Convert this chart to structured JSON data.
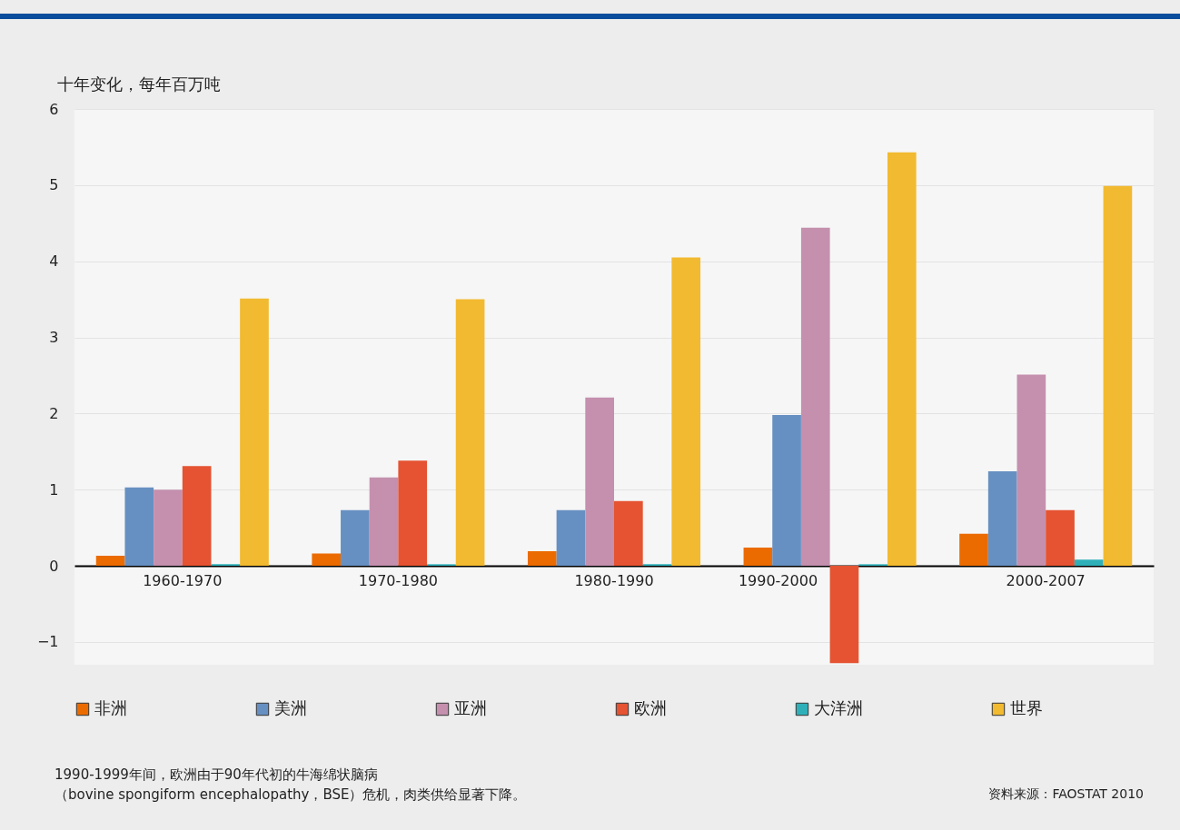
{
  "chart_data": {
    "type": "bar",
    "ylabel": "十年变化，每年百万吨",
    "categories": [
      "1960-1970",
      "1970-1980",
      "1980-1990",
      "1990-2000",
      "2000-2007"
    ],
    "series": [
      {
        "name": "非洲",
        "color": "#eb6b00",
        "values": [
          0.13,
          0.16,
          0.19,
          0.24,
          0.42
        ]
      },
      {
        "name": "美洲",
        "color": "#6790c2",
        "values": [
          1.03,
          0.73,
          0.73,
          1.98,
          1.24
        ]
      },
      {
        "name": "亚洲",
        "color": "#c490ae",
        "values": [
          1.0,
          1.16,
          2.21,
          4.44,
          2.51
        ]
      },
      {
        "name": "欧洲",
        "color": "#e55332",
        "values": [
          1.31,
          1.38,
          0.85,
          -1.28,
          0.73
        ]
      },
      {
        "name": "大洋洲",
        "color": "#2fb0b9",
        "values": [
          0.02,
          0.02,
          0.02,
          0.02,
          0.08
        ]
      },
      {
        "name": "世界",
        "color": "#f2ba30",
        "values": [
          3.51,
          3.5,
          4.05,
          5.43,
          4.99
        ]
      }
    ],
    "ylim": [
      -1.3,
      6
    ],
    "yticks": [
      -1,
      0,
      1,
      2,
      3,
      4,
      5,
      6
    ],
    "grid": "y",
    "legend": "bottom",
    "annotations": [
      "1990-1999年间，欧洲由于90年代初的牛海绵状脑病",
      "（bovine spongiform encephalopathy，BSE）危机，肉类供给显著下降。",
      "资料来源：FAOSTAT 2010"
    ]
  }
}
